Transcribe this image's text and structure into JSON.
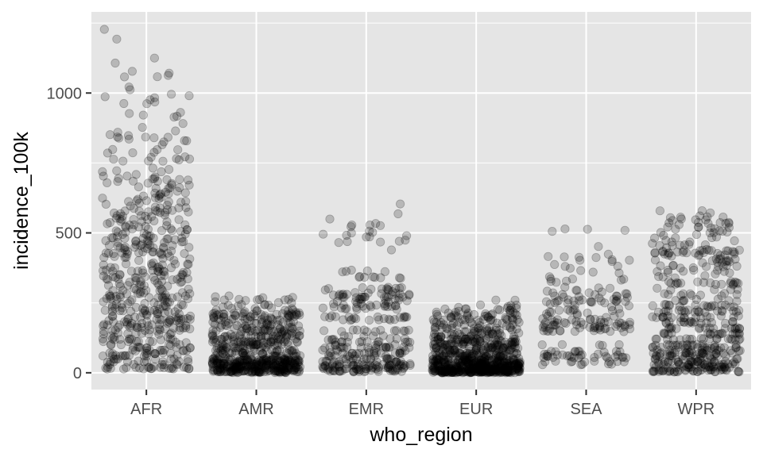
{
  "chart_data": {
    "type": "scatter",
    "title": "",
    "xlabel": "who_region",
    "ylabel": "incidence_100k",
    "categories": [
      "AFR",
      "AMR",
      "EMR",
      "EUR",
      "SEA",
      "WPR"
    ],
    "ylim": [
      -60,
      1290
    ],
    "yticks": [
      0,
      500,
      1000
    ],
    "ytick_labels": [
      "0",
      "500",
      "1000"
    ],
    "grid": true,
    "point_color": "#000000",
    "point_alpha": 0.2,
    "panel_background": "#e5e5e5",
    "grid_color": "#ffffff",
    "series": [
      {
        "category": "AFR",
        "count": 560,
        "y": [
          1275,
          1268,
          1262,
          1255,
          1220,
          1180,
          1120,
          1080,
          1060,
          1040,
          1010,
          995,
          980,
          960,
          940,
          930,
          920,
          905,
          890,
          875,
          860,
          850,
          840,
          830,
          820,
          800,
          790,
          775,
          760,
          745,
          730,
          715,
          700,
          690,
          680,
          670,
          660,
          650,
          640,
          630,
          620,
          610,
          600,
          590,
          580,
          570,
          560,
          550,
          540,
          530,
          520,
          510,
          500,
          490,
          480,
          470,
          460,
          450,
          440,
          430,
          420,
          410,
          400,
          390,
          380,
          370,
          360,
          350,
          340,
          330,
          320,
          310,
          300,
          290,
          280,
          270,
          260,
          250,
          240,
          230,
          220,
          210,
          200,
          190,
          180,
          170,
          160,
          150,
          140,
          130,
          120,
          110,
          100,
          90,
          80,
          70,
          60,
          50,
          40,
          30,
          20,
          15
        ]
      },
      {
        "category": "AMR",
        "count": 600,
        "y": [
          275,
          270,
          265,
          260,
          250,
          240,
          230,
          220,
          210,
          200,
          190,
          180,
          170,
          160,
          150,
          140,
          130,
          120,
          110,
          100,
          90,
          80,
          70,
          60,
          50,
          45,
          40,
          35,
          30,
          25,
          20,
          15,
          10,
          5,
          2
        ]
      },
      {
        "category": "EMR",
        "count": 330,
        "y": [
          715,
          690,
          610,
          565,
          555,
          535,
          530,
          500,
          495,
          490,
          470,
          440,
          360,
          340,
          300,
          285,
          280,
          275,
          270,
          260,
          250,
          240,
          230,
          200,
          190,
          150,
          130,
          120,
          110,
          100,
          90,
          80,
          70,
          60,
          50,
          40,
          30,
          25,
          20,
          15,
          10,
          5
        ]
      },
      {
        "category": "EUR",
        "count": 750,
        "y": [
          255,
          245,
          240,
          230,
          220,
          210,
          200,
          190,
          180,
          170,
          160,
          150,
          140,
          130,
          120,
          110,
          100,
          90,
          80,
          70,
          60,
          50,
          45,
          40,
          35,
          30,
          25,
          20,
          15,
          10,
          8,
          5,
          3,
          1
        ]
      },
      {
        "category": "SEA",
        "count": 200,
        "y": [
          515,
          512,
          510,
          505,
          500,
          450,
          420,
          410,
          400,
          380,
          360,
          340,
          330,
          300,
          290,
          280,
          270,
          260,
          250,
          240,
          225,
          220,
          210,
          200,
          190,
          180,
          170,
          165,
          160,
          150,
          100,
          75,
          65,
          60,
          55,
          40,
          30
        ]
      },
      {
        "category": "WPR",
        "count": 480,
        "y": [
          590,
          580,
          575,
          570,
          560,
          555,
          550,
          540,
          530,
          520,
          500,
          480,
          460,
          450,
          435,
          430,
          425,
          420,
          400,
          380,
          360,
          340,
          320,
          300,
          280,
          260,
          240,
          220,
          200,
          180,
          160,
          140,
          120,
          100,
          90,
          80,
          70,
          60,
          50,
          40,
          30,
          20,
          10,
          5
        ]
      }
    ]
  }
}
